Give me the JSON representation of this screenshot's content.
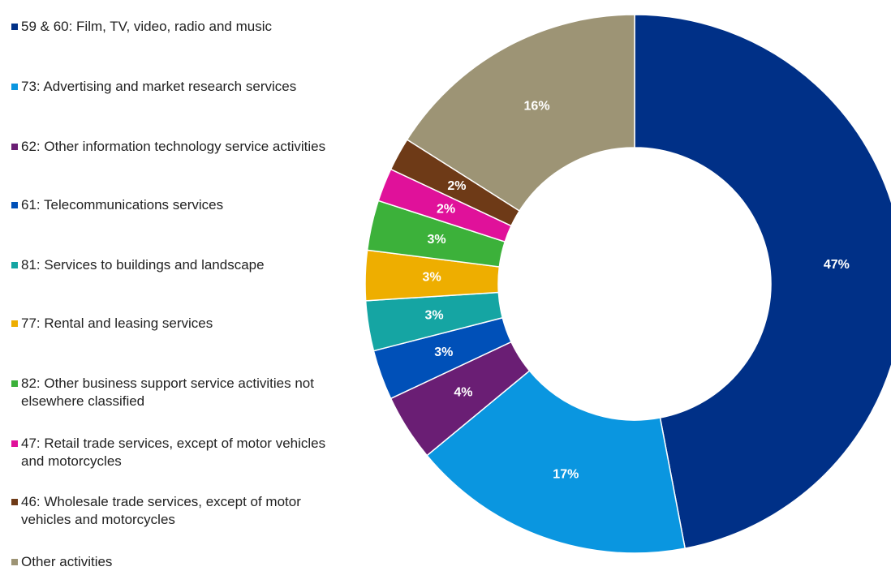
{
  "chart_data": {
    "type": "pie",
    "donut": true,
    "legend_position": "left",
    "slices": [
      {
        "label": "59 & 60: Film, TV, video, radio and music",
        "value": 47,
        "value_label": "47%",
        "color": "#003087"
      },
      {
        "label": "73: Advertising and market research services",
        "value": 17,
        "value_label": "17%",
        "color": "#0a96e0"
      },
      {
        "label": "62: Other information technology service activities",
        "value": 4,
        "value_label": "4%",
        "color": "#6a1e74"
      },
      {
        "label": "61: Telecommunications services",
        "value": 3,
        "value_label": "3%",
        "color": "#0050b8"
      },
      {
        "label": "81: Services to buildings and landscape",
        "value": 3,
        "value_label": "3%",
        "color": "#15a5a3"
      },
      {
        "label": "77: Rental and leasing services",
        "value": 3,
        "value_label": "3%",
        "color": "#eeae00"
      },
      {
        "label": "82: Other business support service activities not elsewhere classified",
        "value": 3,
        "value_label": "3%",
        "color": "#3cb13a"
      },
      {
        "label": "47: Retail trade services, except of motor vehicles and motorcycles",
        "value": 2,
        "value_label": "2%",
        "color": "#e0119a"
      },
      {
        "label": "46: Wholesale trade services, except of motor vehicles and motorcycles",
        "value": 2,
        "value_label": "2%",
        "color": "#6e3a17"
      },
      {
        "label": "Other activities",
        "value": 16,
        "value_label": "16%",
        "color": "#9d9475"
      }
    ]
  }
}
